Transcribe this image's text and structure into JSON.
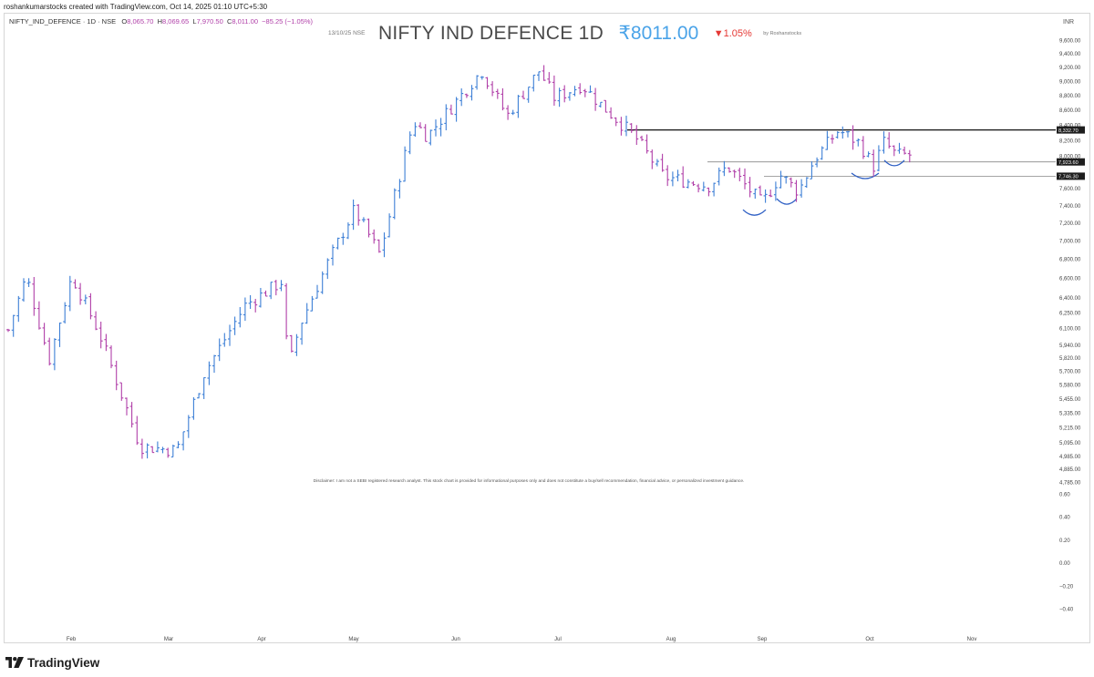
{
  "header": {
    "credit": "roshankumarstocks created with TradingView.com, Oct 14, 2025 01:10 UTC+5:30",
    "symbol": "NIFTY_IND_DEFENCE · 1D · NSE",
    "ohlc": {
      "open_label": "O",
      "open": "8,065.70",
      "high_label": "H",
      "high": "8,069.65",
      "low_label": "L",
      "low": "7,970.50",
      "close_label": "C",
      "close": "8,011.00",
      "change": "−85.25 (−1.05%)"
    }
  },
  "title": {
    "date": "13/10/25  NSE",
    "name": "NIFTY IND DEFENCE 1D",
    "price": "₹8011.00",
    "change": "▼1.05%",
    "author": "by Roshanstocks"
  },
  "currency": "INR",
  "disclaimer": "Disclaimer: I am not a SEBI registered research analyst. This stock chart is provided for informational purposes only and does not constitute a buy/sell recommendation, financial advice, or personalized investment guidance.",
  "brand": {
    "name": "TradingView",
    "icon": "tradingview-logo-icon"
  },
  "colors": {
    "up": "#3d7fd6",
    "down": "#b03fa8",
    "resistance": "#111111",
    "support": "#888888",
    "pattern": "#2e5fc4"
  },
  "chart_data": {
    "type": "ohlc-bar",
    "timeframe": "1D",
    "x_axis": {
      "labels": [
        "Feb",
        "Mar",
        "Apr",
        "May",
        "Jun",
        "Jul",
        "Aug",
        "Sep",
        "Oct",
        "Nov"
      ]
    },
    "y_axis": {
      "scale": "log",
      "range": [
        4800,
        9700
      ],
      "ticks": [
        "9,600.00",
        "9,400.00",
        "9,200.00",
        "9,000.00",
        "8,800.00",
        "8,600.00",
        "8,400.00",
        "8,200.00",
        "8,000.00",
        "7,600.00",
        "7,400.00",
        "7,200.00",
        "7,000.00",
        "6,800.00",
        "6,600.00",
        "6,400.00",
        "6,250.00",
        "6,100.00",
        "5,940.00",
        "5,820.00",
        "5,700.00",
        "5,580.00",
        "5,455.00",
        "5,335.00",
        "5,215.00",
        "5,095.00",
        "4,985.00",
        "4,885.00",
        "4,785.00"
      ]
    },
    "lower_pane": {
      "ticks": [
        "0.60",
        "0.40",
        "0.20",
        "0.00",
        "−0.20",
        "−0.40"
      ],
      "range": [
        -0.5,
        0.65
      ]
    },
    "levels": [
      {
        "value": 8332.7,
        "label": "8,332.70",
        "style": "resistance"
      },
      {
        "value": 7923.6,
        "label": "7,923.60",
        "style": "support"
      },
      {
        "value": 7746.3,
        "label": "7,746.30",
        "style": "support"
      }
    ],
    "waypoints": [
      {
        "t": 0,
        "v": 6080
      },
      {
        "t": 20,
        "v": 6620
      },
      {
        "t": 45,
        "v": 5800
      },
      {
        "t": 70,
        "v": 6620
      },
      {
        "t": 100,
        "v": 6050
      },
      {
        "t": 145,
        "v": 5060
      },
      {
        "t": 185,
        "v": 5030
      },
      {
        "t": 215,
        "v": 5680
      },
      {
        "t": 260,
        "v": 6320
      },
      {
        "t": 300,
        "v": 6560
      },
      {
        "t": 308,
        "v": 5730
      },
      {
        "t": 320,
        "v": 6120
      },
      {
        "t": 350,
        "v": 6740
      },
      {
        "t": 380,
        "v": 7350
      },
      {
        "t": 408,
        "v": 6850
      },
      {
        "t": 445,
        "v": 8450
      },
      {
        "t": 460,
        "v": 8250
      },
      {
        "t": 520,
        "v": 9150
      },
      {
        "t": 548,
        "v": 8520
      },
      {
        "t": 583,
        "v": 9150
      },
      {
        "t": 600,
        "v": 8760
      },
      {
        "t": 630,
        "v": 8950
      },
      {
        "t": 650,
        "v": 8680
      },
      {
        "t": 688,
        "v": 8250
      },
      {
        "t": 720,
        "v": 7740
      },
      {
        "t": 770,
        "v": 7630
      },
      {
        "t": 790,
        "v": 7870
      },
      {
        "t": 828,
        "v": 7420
      },
      {
        "t": 848,
        "v": 7760
      },
      {
        "t": 868,
        "v": 7560
      },
      {
        "t": 885,
        "v": 7950
      },
      {
        "t": 912,
        "v": 8330
      },
      {
        "t": 935,
        "v": 8160
      },
      {
        "t": 950,
        "v": 7860
      },
      {
        "t": 962,
        "v": 8180
      },
      {
        "t": 975,
        "v": 8010
      },
      {
        "t": 990,
        "v": 8011
      }
    ]
  }
}
